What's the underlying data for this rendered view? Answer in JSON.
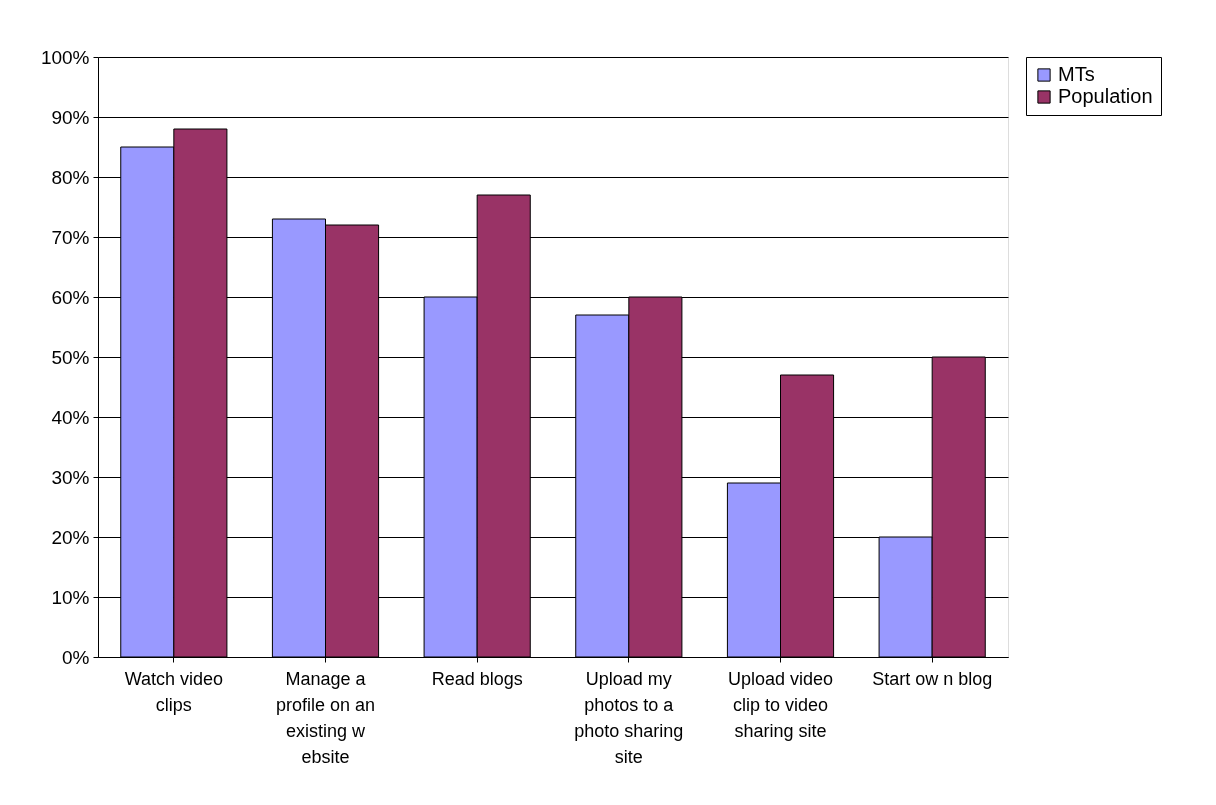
{
  "chart_data": {
    "type": "bar",
    "categories": [
      "Watch video clips",
      "Manage a profile on an existing w ebsite",
      "Read blogs",
      "Upload my photos to a photo sharing site",
      "Upload video clip to video sharing site",
      "Start ow n blog"
    ],
    "series": [
      {
        "name": "MTs",
        "color": "#9999ff",
        "values": [
          85,
          73,
          60,
          57,
          29,
          20
        ]
      },
      {
        "name": "Population",
        "color": "#993366",
        "values": [
          88,
          72,
          77,
          60,
          47,
          50
        ]
      }
    ],
    "ylim": [
      0,
      100
    ],
    "yticks": [
      {
        "value": 0,
        "label": "0%"
      },
      {
        "value": 10,
        "label": "10%"
      },
      {
        "value": 20,
        "label": "20%"
      },
      {
        "value": 30,
        "label": "30%"
      },
      {
        "value": 40,
        "label": "40%"
      },
      {
        "value": 50,
        "label": "50%"
      },
      {
        "value": 60,
        "label": "60%"
      },
      {
        "value": 70,
        "label": "70%"
      },
      {
        "value": 80,
        "label": "80%"
      },
      {
        "value": 90,
        "label": "90%"
      },
      {
        "value": 100,
        "label": "100%"
      }
    ],
    "grid": "y",
    "legend": "right"
  }
}
